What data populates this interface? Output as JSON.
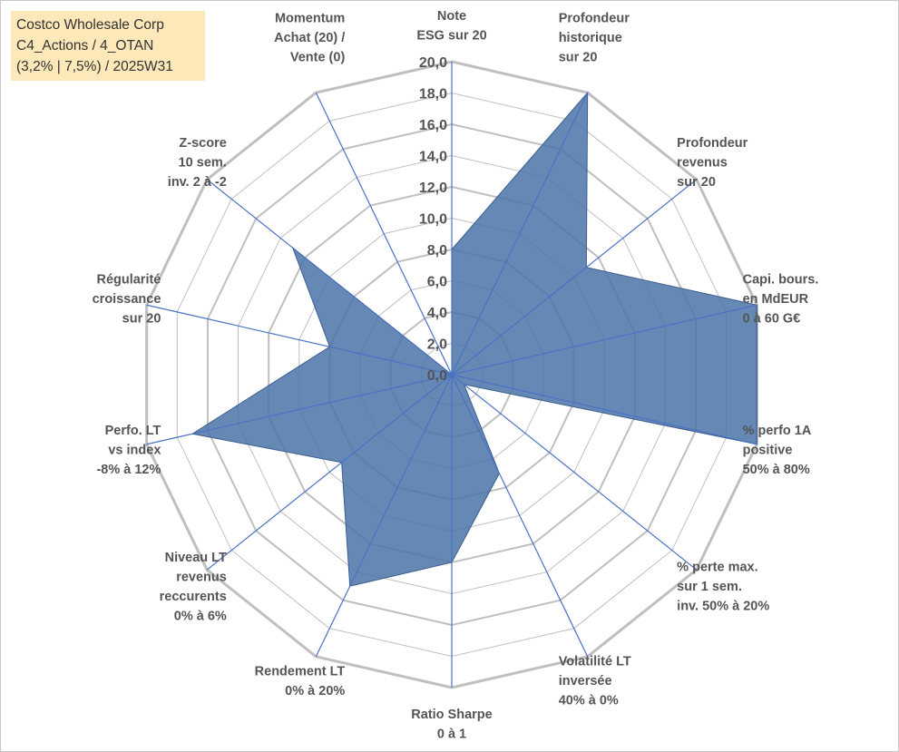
{
  "title_box": {
    "line1": "Costco Wholesale Corp",
    "line2": "C4_Actions / 4_OTAN",
    "line3": "(3,2% | 7,5%) / 2025W31"
  },
  "colors": {
    "fill": "#4a73a8",
    "axis": "#4a72c4",
    "grid": "#bfbfbf",
    "title_bg": "#fce8b8"
  },
  "chart_data": {
    "type": "radar",
    "title": "Costco Wholesale Corp",
    "rmin": 0,
    "rmax": 20,
    "ticks": [
      "0,0",
      "2,0",
      "4,0",
      "6,0",
      "8,0",
      "10,0",
      "12,0",
      "14,0",
      "16,0",
      "18,0",
      "20,0"
    ],
    "grid": true,
    "axes": [
      {
        "label": [
          "Note",
          "ESG sur 20"
        ],
        "value": 8
      },
      {
        "label": [
          "Profondeur",
          "historique",
          "sur 20"
        ],
        "value": 20
      },
      {
        "label": [
          "Profondeur",
          "revenus",
          "sur 20"
        ],
        "value": 11
      },
      {
        "label": [
          "Capi. bours.",
          "en MdEUR",
          "0 à 60 G€"
        ],
        "value": 20
      },
      {
        "label": [
          "% perfo 1A",
          "positive",
          "50% à 80%"
        ],
        "value": 20
      },
      {
        "label": [
          "% perte max.",
          "sur 1 sem.",
          "inv. 50% à 20%"
        ],
        "value": 1
      },
      {
        "label": [
          "Volatilité LT",
          "inversée",
          "40% à 0%"
        ],
        "value": 7
      },
      {
        "label": [
          "Ratio Sharpe",
          "0 à 1"
        ],
        "value": 12
      },
      {
        "label": [
          "Rendement LT",
          "0% à 20%"
        ],
        "value": 15
      },
      {
        "label": [
          "Niveau LT",
          "revenus",
          "reccurents",
          "0% à 6%"
        ],
        "value": 9
      },
      {
        "label": [
          "Perfo. LT",
          "vs index",
          "-8% à 12%"
        ],
        "value": 17
      },
      {
        "label": [
          "Régularité",
          "croissance",
          "sur 20"
        ],
        "value": 8
      },
      {
        "label": [
          "Z-score",
          "10 sem.",
          "inv. 2 à -2"
        ],
        "value": 13
      },
      {
        "label": [
          "Momentum",
          "Achat (20) /",
          "Vente (0)"
        ],
        "value": 0
      }
    ]
  }
}
